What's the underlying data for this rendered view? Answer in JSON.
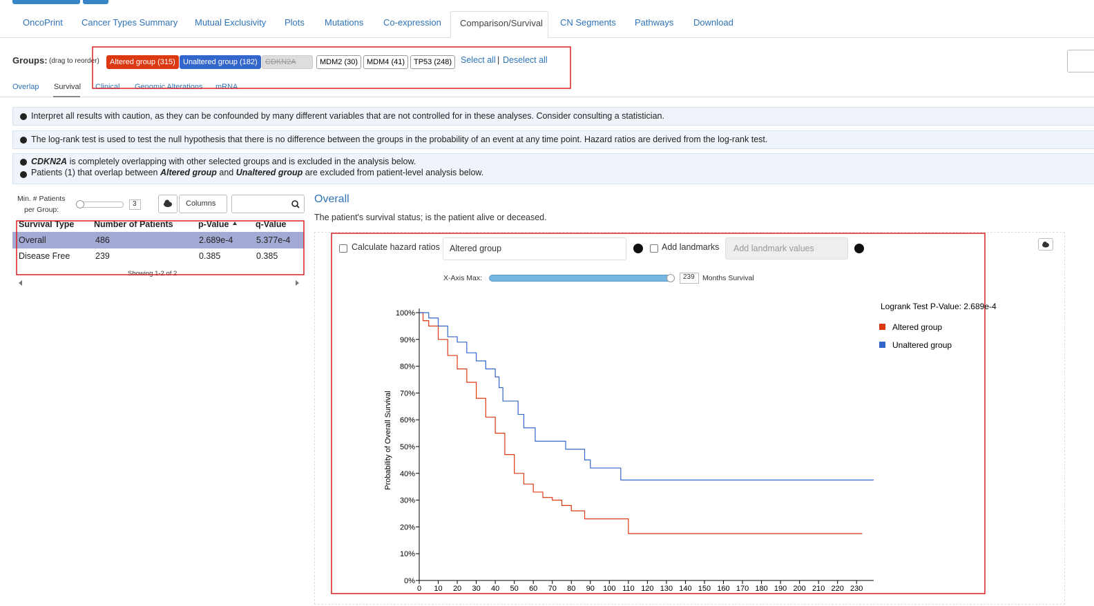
{
  "tabs": [
    "OncoPrint",
    "Cancer Types Summary",
    "Mutual Exclusivity",
    "Plots",
    "Mutations",
    "Co-expression",
    "Comparison/Survival",
    "CN Segments",
    "Pathways",
    "Download"
  ],
  "groups": {
    "label": "Groups:",
    "hint": "(drag to reorder)",
    "items": [
      "Altered group (315)",
      "Unaltered group (182)",
      "CDKN2A",
      "MDM2 (30)",
      "MDM4 (41)",
      "TP53 (248)"
    ],
    "select_all": "Select all",
    "separator": "|",
    "deselect_all": "Deselect all"
  },
  "subtabs": [
    "Overlap",
    "Survival",
    "Clinical",
    "Genomic Alterations",
    "mRNA"
  ],
  "notices": [
    "Interpret all results with caution, as they can be confounded by many different variables that are not controlled for in these analyses. Consider consulting a statistician.",
    "The log-rank test is used to test the null hypothesis that there is no difference between the groups in the probability of an event at any time point. Hazard ratios are derived from the log-rank test."
  ],
  "overlap_notice": {
    "gene": "CDKN2A",
    "text": "is completely overlapping with other selected groups and is excluded in the analysis below.",
    "line2": [
      "Patients (1) that overlap between",
      "Altered group",
      "and",
      "Unaltered group",
      "are excluded from patient-level analysis below."
    ]
  },
  "controls": {
    "min_label_1": "Min. # Patients",
    "min_label_2": "per Group:",
    "min_value": "3",
    "columns": "Columns"
  },
  "table": {
    "headers": [
      "Survival Type",
      "Number of Patients",
      "p-Value",
      "q-Value"
    ],
    "rows": [
      [
        "Overall",
        "486",
        "2.689e-4",
        "5.377e-4"
      ],
      [
        "Disease Free",
        "239",
        "0.385",
        "0.385"
      ]
    ],
    "footer": "Showing 1-2 of 2"
  },
  "survival": {
    "title": "Overall",
    "description": "The patient's survival status; is the patient alive or deceased.",
    "hazard_label": "Calculate hazard ratios",
    "hazard_select": "Altered group",
    "landmarks_label": "Add landmarks",
    "landmarks_placeholder": "Add landmark values",
    "xaxis_max_label": "X-Axis Max:",
    "xaxis_max_value": "239",
    "xaxis_unit": "Months Survival"
  },
  "chart_data": {
    "type": "step",
    "ylabel": "Probability of Overall Survival",
    "annotation": "Logrank Test P-Value: 2.689e-4",
    "xlim": [
      0,
      239
    ],
    "ylim": [
      0,
      100
    ],
    "xticks": [
      0,
      10,
      20,
      30,
      40,
      50,
      60,
      70,
      80,
      90,
      100,
      110,
      120,
      130,
      140,
      150,
      160,
      170,
      180,
      190,
      200,
      210,
      220,
      230
    ],
    "yticks": [
      {
        "value": 0,
        "label": "0%"
      },
      {
        "value": 10,
        "label": "10%"
      },
      {
        "value": 20,
        "label": "20%"
      },
      {
        "value": 30,
        "label": "30%"
      },
      {
        "value": 40,
        "label": "40%"
      },
      {
        "value": 50,
        "label": "50%"
      },
      {
        "value": 60,
        "label": "60%"
      },
      {
        "value": 70,
        "label": "70%"
      },
      {
        "value": 80,
        "label": "80%"
      },
      {
        "value": 90,
        "label": "90%"
      },
      {
        "value": 100,
        "label": "100%"
      }
    ],
    "series": [
      {
        "name": "Altered group",
        "color": "#dc3912",
        "x": [
          0,
          2,
          5,
          10,
          15,
          20,
          25,
          30,
          35,
          40,
          45,
          50,
          55,
          60,
          65,
          70,
          75,
          80,
          87,
          110,
          233
        ],
        "values": [
          100,
          97,
          95,
          90,
          84,
          79,
          74,
          68,
          61,
          55,
          47,
          40,
          36,
          33,
          31,
          30,
          28,
          26,
          23,
          17.5,
          17.5
        ]
      },
      {
        "name": "Unaltered group",
        "color": "#3366cc",
        "x": [
          0,
          5,
          10,
          15,
          20,
          25,
          30,
          35,
          40,
          42,
          44,
          52,
          55,
          61,
          77,
          87,
          90,
          106,
          239
        ],
        "values": [
          100,
          98,
          95,
          91,
          89,
          85,
          82,
          79,
          76,
          72,
          67,
          62,
          57,
          52,
          49,
          45,
          42,
          37.5,
          37.5
        ]
      }
    ]
  }
}
